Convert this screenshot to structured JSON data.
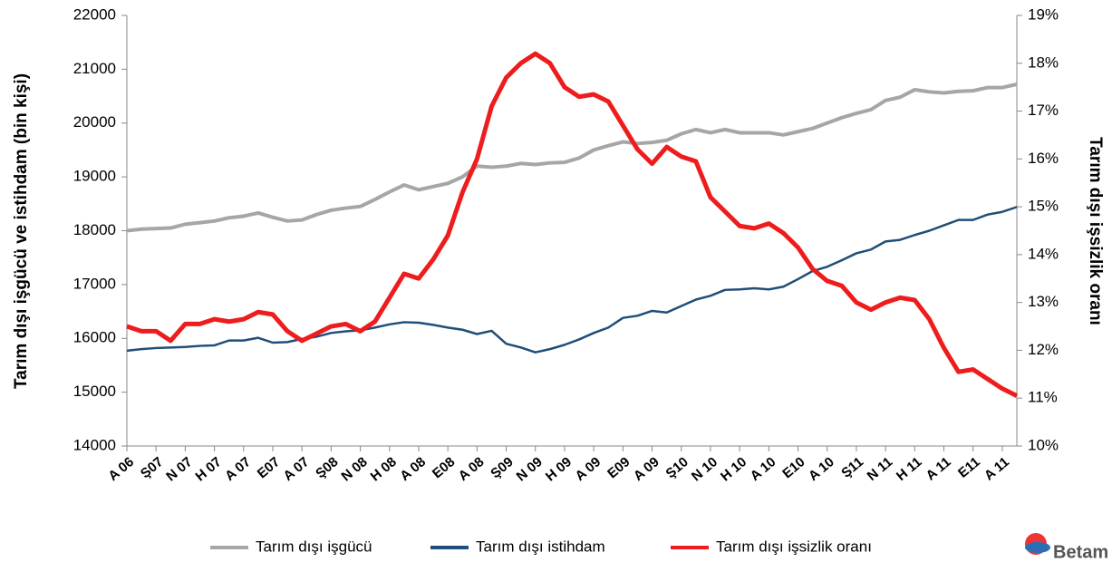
{
  "chart_data": {
    "type": "line",
    "y_label": "Tarım dışı işgücü ve istihdam (bin kişi)",
    "y2_label": "Tarım dışı işsizlik oranı",
    "categories": [
      "A 06",
      null,
      "Ş07",
      null,
      "N 07",
      null,
      "H 07",
      null,
      "A 07",
      null,
      "E07",
      null,
      "A 07",
      null,
      "Ş08",
      null,
      "N 08",
      null,
      "H 08",
      null,
      "A 08",
      null,
      "E08",
      null,
      "A 08",
      null,
      "Ş09",
      null,
      "N 09",
      null,
      "H 09",
      null,
      "A 09",
      null,
      "E09",
      null,
      "A 09",
      null,
      "Ş10",
      null,
      "N 10",
      null,
      "H 10",
      null,
      "A 10",
      null,
      "E10",
      null,
      "A 10",
      null,
      "Ş11",
      null,
      "N 11",
      null,
      "H 11",
      null,
      "A 11",
      null,
      "E11",
      null,
      "A 11",
      null
    ],
    "series": [
      {
        "name": "Tarım dışı  işgücü",
        "color": "#a6a6a6",
        "values": [
          18000,
          18030,
          18040,
          18050,
          18120,
          18150,
          18180,
          18240,
          18270,
          18330,
          18250,
          18180,
          18200,
          18300,
          18380,
          18420,
          18450,
          18580,
          18720,
          18850,
          18760,
          18820,
          18880,
          19000,
          19200,
          19180,
          19200,
          19250,
          19230,
          19260,
          19270,
          19350,
          19500,
          19580,
          19650,
          19620,
          19640,
          19680,
          19800,
          19880,
          19820,
          19880,
          19820,
          19820,
          19820,
          19780,
          19840,
          19900,
          20000,
          20100,
          20180,
          20250,
          20420,
          20480,
          20620,
          20580,
          20560,
          20590,
          20600,
          20660,
          20660,
          20720
        ]
      },
      {
        "name": "Tarım dışı  istihdam",
        "color": "#1f4e79",
        "values": [
          15770,
          15800,
          15820,
          15830,
          15840,
          15860,
          15870,
          15960,
          15960,
          16010,
          15920,
          15930,
          15990,
          16030,
          16100,
          16130,
          16150,
          16200,
          16260,
          16300,
          16290,
          16250,
          16200,
          16160,
          16080,
          16140,
          15900,
          15830,
          15740,
          15800,
          15880,
          15980,
          16100,
          16200,
          16380,
          16420,
          16510,
          16480,
          16600,
          16720,
          16790,
          16900,
          16910,
          16930,
          16910,
          16960,
          17100,
          17250,
          17330,
          17450,
          17580,
          17650,
          17800,
          17830,
          17920,
          18000,
          18100,
          18200,
          18200,
          18300,
          18350,
          18440
        ]
      },
      {
        "name": "Tarım dışı  işsizlik oranı",
        "color": "#ee1c1c",
        "axis": "y2",
        "values": [
          12.5,
          12.4,
          12.4,
          12.2,
          12.55,
          12.55,
          12.65,
          12.6,
          12.65,
          12.8,
          12.75,
          12.4,
          12.2,
          12.35,
          12.5,
          12.55,
          12.4,
          12.6,
          13.1,
          13.6,
          13.5,
          13.9,
          14.4,
          15.3,
          16.0,
          17.1,
          17.7,
          18.0,
          18.2,
          18.0,
          17.5,
          17.3,
          17.35,
          17.2,
          16.7,
          16.2,
          15.9,
          16.25,
          16.05,
          15.95,
          15.2,
          14.9,
          14.6,
          14.55,
          14.65,
          14.45,
          14.15,
          13.7,
          13.45,
          13.35,
          13.0,
          12.85,
          13.0,
          13.1,
          13.05,
          12.65,
          12.05,
          11.55,
          11.6,
          11.4,
          11.2,
          11.05
        ]
      }
    ],
    "ylim": [
      14000,
      22000
    ],
    "yticks": [
      14000,
      15000,
      16000,
      17000,
      18000,
      19000,
      20000,
      21000,
      22000
    ],
    "y2lim": [
      10,
      19
    ],
    "y2ticks": [
      {
        "value": 10,
        "label": "10%"
      },
      {
        "value": 11,
        "label": "11%"
      },
      {
        "value": 12,
        "label": "12%"
      },
      {
        "value": 13,
        "label": "13%"
      },
      {
        "value": 14,
        "label": "14%"
      },
      {
        "value": 15,
        "label": "15%"
      },
      {
        "value": 16,
        "label": "16%"
      },
      {
        "value": 17,
        "label": "17%"
      },
      {
        "value": 18,
        "label": "18%"
      },
      {
        "value": 19,
        "label": "19%"
      }
    ],
    "grid": false,
    "legend": "bottom",
    "logo": "Betam"
  }
}
